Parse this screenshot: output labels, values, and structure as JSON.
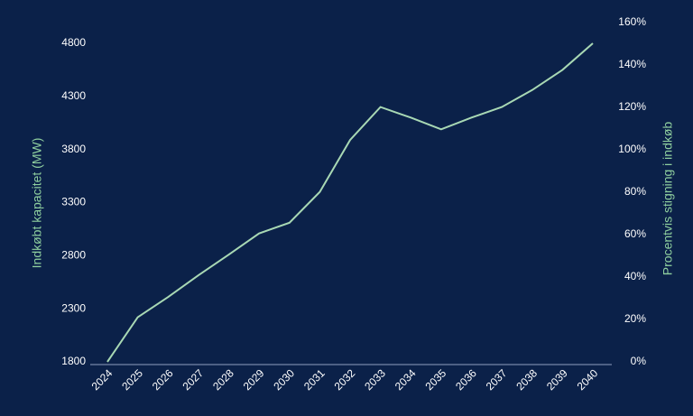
{
  "chart_data": {
    "type": "line",
    "ylabel": "Indkøbt kapacitet (MW)",
    "y2label": "Procentvis stigning i indkøb",
    "categories": [
      "2024",
      "2025",
      "2026",
      "2027",
      "2028",
      "2029",
      "2030",
      "2031",
      "2032",
      "2033",
      "2034",
      "2035",
      "2036",
      "2037",
      "2038",
      "2039",
      "2040"
    ],
    "series": [
      {
        "name": "Indkøbt kapacitet",
        "color": "#a8d8b4",
        "values": [
          1800,
          2220,
          2410,
          2615,
          2810,
          3010,
          3110,
          3400,
          3890,
          4200,
          4100,
          3990,
          4100,
          4200,
          4360,
          4550,
          4800
        ]
      }
    ],
    "ylim": [
      1800,
      4800
    ],
    "yticks": [
      1800,
      2300,
      2800,
      3300,
      3800,
      4300,
      4800
    ],
    "y2lim": [
      0,
      160
    ],
    "y2ticks": [
      {
        "value": 0,
        "label": "0%"
      },
      {
        "value": 20,
        "label": "20%"
      },
      {
        "value": 40,
        "label": "40%"
      },
      {
        "value": 60,
        "label": "60%"
      },
      {
        "value": 80,
        "label": "80%"
      },
      {
        "value": 100,
        "label": "100%"
      },
      {
        "value": 120,
        "label": "120%"
      },
      {
        "value": 140,
        "label": "140%"
      },
      {
        "value": 160,
        "label": "160%"
      }
    ]
  }
}
